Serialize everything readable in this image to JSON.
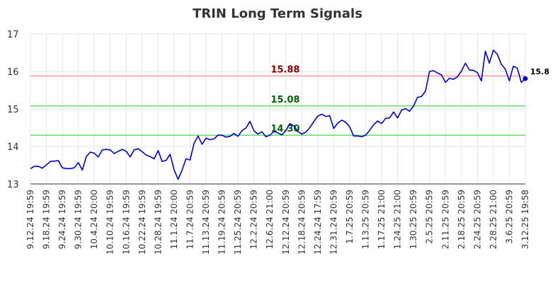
{
  "chart_data": {
    "type": "line",
    "title": "TRIN Long Term Signals",
    "ylim": [
      13,
      17
    ],
    "yticks": [
      13,
      14,
      15,
      16,
      17
    ],
    "grid": true,
    "xtick_labels": [
      "9.12.24 19:59",
      "9.18.24 19:59",
      "9.24.24 19:59",
      "9.30.24 19:59",
      "10.4.24 20:00",
      "10.10.24 19:59",
      "10.16.24 19:59",
      "10.22.24 19:59",
      "10.28.24 19:59",
      "11.1.24 20:00",
      "11.7.24 20:59",
      "11.13.24 20:59",
      "11.19.24 20:59",
      "11.25.24 20:59",
      "12.2.24 20:59",
      "12.6.24 21:00",
      "12.12.24 20:59",
      "12.18.24 20:59",
      "12.24.24 17:59",
      "12.31.24 20:59",
      "1.7.25 20:59",
      "1.13.25 20:59",
      "1.17.25 21:00",
      "1.24.25 21:00",
      "1.30.25 20:59",
      "2.5.25 20:59",
      "2.11.25 20:59",
      "2.18.25 20:59",
      "2.24.25 20:59",
      "2.28.25 21:00",
      "3.6.25 20:59",
      "3.12.25 19:58"
    ],
    "levels": [
      {
        "value": 15.88,
        "label": "15.88",
        "color": "#ff9999",
        "label_color": "#8b0000"
      },
      {
        "value": 15.08,
        "label": "15.08",
        "color": "#66dd66",
        "label_color": "#006400"
      },
      {
        "value": 14.3,
        "label": "14.30",
        "color": "#66dd66",
        "label_color": "#006400"
      }
    ],
    "last_value_label": "15.8",
    "series": [
      {
        "color": "#0000cc",
        "values": [
          13.41,
          13.47,
          13.47,
          13.42,
          13.51,
          13.6,
          13.61,
          13.62,
          13.43,
          13.41,
          13.41,
          13.43,
          13.57,
          13.37,
          13.73,
          13.85,
          13.82,
          13.72,
          13.91,
          13.92,
          13.91,
          13.81,
          13.87,
          13.92,
          13.87,
          13.72,
          13.91,
          13.94,
          13.86,
          13.77,
          13.73,
          13.67,
          13.89,
          13.6,
          13.63,
          13.79,
          13.38,
          13.12,
          13.37,
          13.67,
          13.64,
          14.08,
          14.28,
          14.06,
          14.22,
          14.18,
          14.2,
          14.3,
          14.3,
          14.25,
          14.27,
          14.35,
          14.27,
          14.42,
          14.49,
          14.67,
          14.42,
          14.33,
          14.39,
          14.26,
          14.3,
          14.4,
          14.36,
          14.31,
          14.42,
          14.61,
          14.55,
          14.4,
          14.33,
          14.38,
          14.5,
          14.66,
          14.81,
          14.86,
          14.8,
          14.82,
          14.48,
          14.62,
          14.7,
          14.65,
          14.52,
          14.28,
          14.28,
          14.26,
          14.3,
          14.43,
          14.58,
          14.68,
          14.61,
          14.75,
          14.76,
          14.92,
          14.76,
          14.97,
          15.01,
          14.94,
          15.08,
          15.31,
          15.33,
          15.48,
          16.0,
          16.02,
          15.96,
          15.91,
          15.71,
          15.82,
          15.79,
          15.86,
          16.01,
          16.22,
          16.04,
          16.03,
          15.97,
          15.75,
          16.54,
          16.22,
          16.57,
          16.46,
          16.19,
          16.06,
          15.75,
          16.14,
          16.09,
          15.71,
          15.81
        ]
      }
    ]
  }
}
